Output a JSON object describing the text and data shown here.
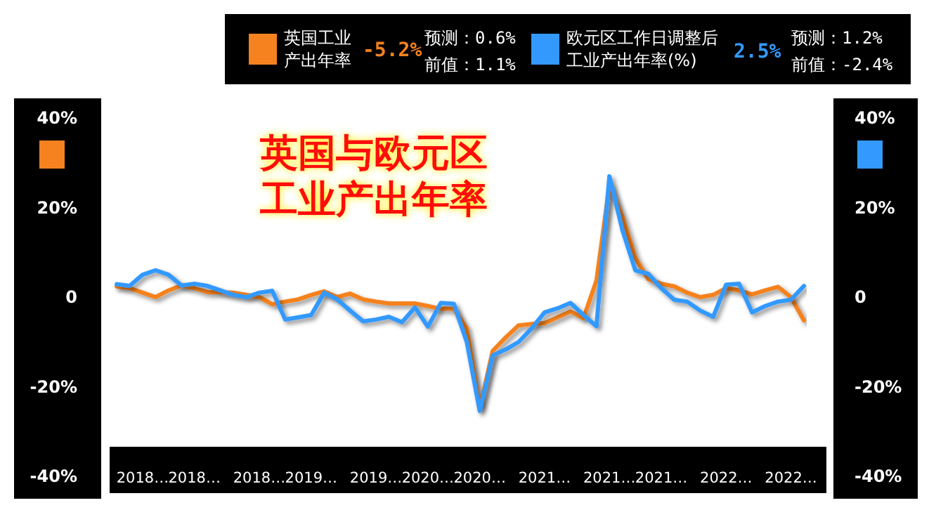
{
  "chart_data": {
    "type": "line",
    "title": "英国与欧元区工业产出年率",
    "categories": [
      null,
      null,
      "2018…",
      null,
      null,
      null,
      "2018…",
      null,
      null,
      null,
      null,
      "2018…",
      null,
      null,
      null,
      "2019…",
      null,
      null,
      null,
      null,
      "2019…",
      null,
      null,
      null,
      "2020…",
      null,
      null,
      null,
      "2020…",
      null,
      null,
      null,
      null,
      "2021…",
      null,
      null,
      null,
      null,
      "2021…",
      null,
      null,
      null,
      "2021…",
      null,
      null,
      null,
      null,
      "2022…",
      null,
      null,
      null,
      null,
      "2022…",
      null
    ],
    "series": [
      {
        "name": "英国工业产出年率",
        "color": "#f5821f",
        "values": [
          2.4,
          2,
          1,
          0,
          1.5,
          2.6,
          2,
          1.1,
          1.1,
          1,
          0.5,
          0,
          -1.6,
          -1,
          -0.5,
          0.5,
          1.3,
          0,
          0.8,
          -0.5,
          -1,
          -1.4,
          -1.4,
          -1.4,
          -2,
          -2.6,
          -2.6,
          -7,
          -24.8,
          -12,
          -9,
          -6.3,
          -6,
          -5.8,
          -4.5,
          -3.2,
          -4.7,
          3.7,
          25,
          18,
          8.8,
          4,
          3,
          2.4,
          1,
          0,
          0.5,
          2,
          1.5,
          0.6,
          1.5,
          2.3,
          0,
          -5.2
        ]
      },
      {
        "name": "欧元区工作日调整后工业产出年率(%)",
        "color": "#3399ff",
        "axis": "y2",
        "values": [
          2.9,
          2.5,
          5,
          6,
          5,
          2.6,
          3,
          2.5,
          1.5,
          0.5,
          0,
          1,
          1.4,
          -5,
          -4.5,
          -4,
          1,
          -0.5,
          -3,
          -5.4,
          -5,
          -4.4,
          -5.6,
          -2.3,
          -6.6,
          -1.3,
          -1.5,
          -10,
          -25.4,
          -13,
          -11.7,
          -10,
          -7,
          -3.4,
          -2.5,
          -1.3,
          -4,
          -6.5,
          27,
          15,
          6,
          5.2,
          2,
          -0.6,
          -1,
          -3,
          -4.4,
          2.8,
          3,
          -3.4,
          -2,
          -1,
          -0.6,
          2.5
        ]
      }
    ],
    "ylim": [
      -40,
      40
    ],
    "yticks": [
      {
        "value": -40,
        "label": "-40%"
      },
      {
        "value": -20,
        "label": "-20%"
      },
      0,
      {
        "value": 20,
        "label": "20%"
      },
      {
        "value": 40,
        "label": "40%"
      }
    ],
    "y2lim": [
      -40,
      40
    ],
    "y2ticks": [
      {
        "value": -40,
        "label": "-40%"
      },
      {
        "value": -20,
        "label": "-20%"
      },
      0,
      {
        "value": 20,
        "label": "20%"
      },
      {
        "value": 40,
        "label": "40%"
      }
    ],
    "annotations": [
      "-5.2%",
      "预测：0.6%",
      "前值：1.1%",
      "2.5%",
      "预测：1.2%",
      "前值：-2.4%"
    ],
    "legend": "top",
    "grid": false,
    "marker": "none",
    "line_style": "solid"
  }
}
